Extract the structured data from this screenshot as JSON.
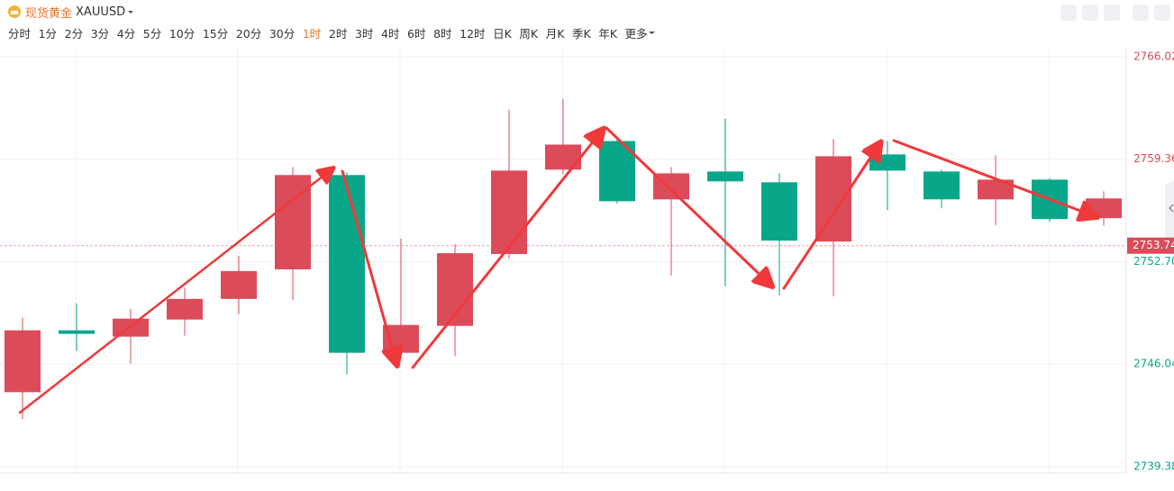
{
  "toolbar": {
    "title": "现货黄金",
    "symbol": "XAUUSD",
    "timeframes": [
      "分时",
      "1分",
      "2分",
      "3分",
      "4分",
      "5分",
      "10分",
      "15分",
      "20分",
      "30分",
      "1时",
      "2时",
      "3时",
      "4时",
      "6时",
      "8时",
      "12时",
      "日K",
      "周K",
      "月K",
      "季K",
      "年K",
      "更多"
    ],
    "active_timeframe": 10
  },
  "chart_data": {
    "type": "candlestick",
    "categories": [
      null,
      null,
      null,
      null,
      null,
      null,
      null,
      null,
      null,
      null,
      null,
      null,
      null,
      null,
      null,
      null,
      null,
      null,
      null,
      null,
      null
    ],
    "open": [
      2744.22,
      2748.24,
      2747.83,
      2748.94,
      2750.28,
      2752.2,
      2758.33,
      2746.78,
      2748.53,
      2753.2,
      2758.68,
      2760.54,
      2756.75,
      2758.56,
      2757.86,
      2754.01,
      2759.67,
      2758.56,
      2756.75,
      2758.03,
      2755.53
    ],
    "high": [
      2749.06,
      2749.99,
      2749.64,
      2751.04,
      2753.08,
      2758.85,
      2758.5,
      2754.19,
      2753.84,
      2762.58,
      2763.28,
      2760.83,
      2758.85,
      2762.0,
      2758.44,
      2760.66,
      2760.54,
      2758.68,
      2759.61,
      2758.15,
      2757.28
    ],
    "low": [
      2742.47,
      2746.9,
      2746.08,
      2747.89,
      2749.29,
      2750.22,
      2745.38,
      2746.78,
      2746.55,
      2752.9,
      2758.38,
      2756.46,
      2751.8,
      2751.1,
      2750.51,
      2750.45,
      2756.05,
      2756.17,
      2755.06,
      2755.29,
      2755.06
    ],
    "close": [
      2748.24,
      2748.01,
      2749.0,
      2750.28,
      2752.09,
      2758.33,
      2746.78,
      2748.59,
      2753.25,
      2758.62,
      2760.31,
      2756.63,
      2758.44,
      2757.92,
      2754.07,
      2759.55,
      2758.62,
      2756.75,
      2758.03,
      2755.47,
      2756.81
    ],
    "up_color": "#dc4b5a",
    "down_color": "#0aa68a",
    "ylim": [
      2738.97,
      2766.66
    ],
    "yticks": [
      2766.02,
      2759.36,
      {
        "value": 2752.7,
        "label": "2752.70"
      },
      2746.04,
      2739.38
    ],
    "last_price": 2753.74,
    "grid": true
  }
}
